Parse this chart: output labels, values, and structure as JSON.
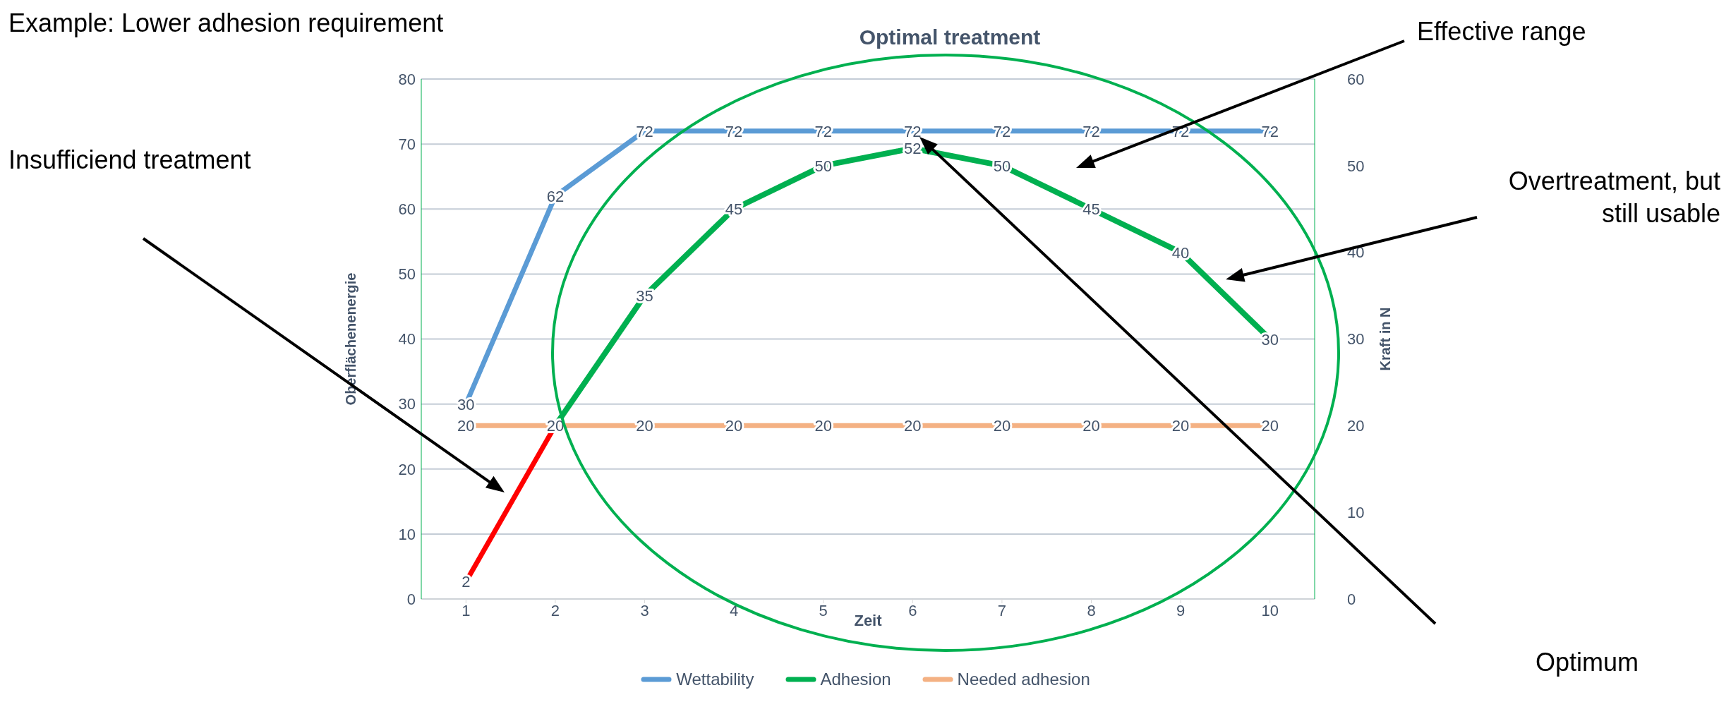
{
  "chart_data": {
    "type": "line",
    "title": "Optimal treatment",
    "xlabel": "Zeit",
    "ylabel": "Oberflächenenergie",
    "y2label": "Kraft in N",
    "categories": [
      "1",
      "2",
      "3",
      "4",
      "5",
      "6",
      "7",
      "8",
      "9",
      "10"
    ],
    "series": [
      {
        "name": "Wettability",
        "color": "#5b9bd5",
        "values": [
          30,
          62,
          72,
          72,
          72,
          72,
          72,
          72,
          72,
          72
        ]
      },
      {
        "name": "Adhesion",
        "color": "#00b050",
        "axis": "y2",
        "values": [
          null,
          20,
          35,
          45,
          50,
          52,
          50,
          45,
          40,
          30
        ],
        "value_labels": [
          null,
          null,
          "35",
          "45",
          "50",
          "52",
          "50",
          "45",
          "40",
          "30"
        ]
      },
      {
        "name": "Needed adhesion",
        "color": "#f4b183",
        "axis": "y2",
        "values": [
          20,
          20,
          20,
          20,
          20,
          20,
          20,
          20,
          20,
          20
        ]
      },
      {
        "color": "#ff0000",
        "axis": "y2",
        "values": [
          2,
          20,
          null,
          null,
          null,
          null,
          null,
          null,
          null,
          null
        ],
        "value_labels": [
          "2",
          null,
          null,
          null,
          null,
          null,
          null,
          null,
          null,
          null
        ]
      }
    ],
    "ylim": [
      0,
      80
    ],
    "yticks": [
      0,
      10,
      20,
      30,
      40,
      50,
      60,
      70,
      80
    ],
    "y2lim": [
      0,
      60
    ],
    "y2ticks": [
      0,
      10,
      20,
      30,
      40,
      50,
      60
    ],
    "grid": "y",
    "legend": "bottom",
    "marker": "none",
    "line_style": "solid",
    "data_labels": true,
    "annotations": [
      "Example: Lower adhesion requirement",
      "Insufficiend treatment",
      "Effective range",
      "Overtreatment, but still usable",
      "Optimum"
    ]
  }
}
